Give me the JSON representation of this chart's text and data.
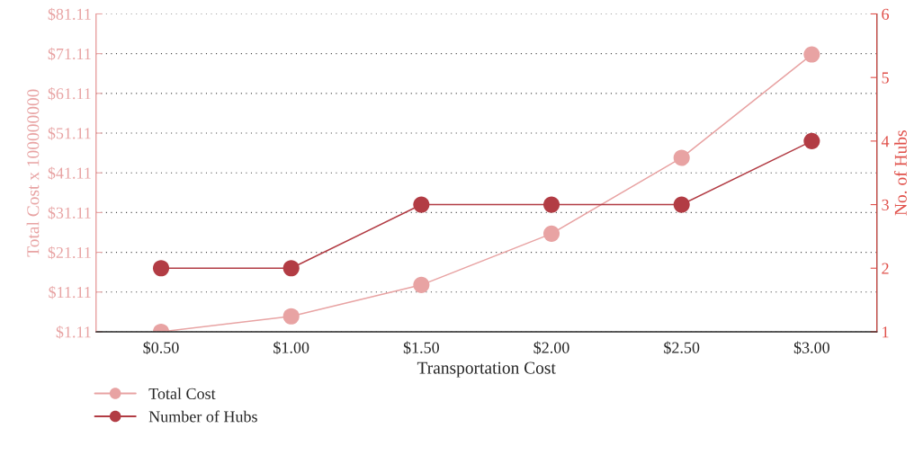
{
  "chart_data": {
    "type": "line",
    "xlabel": "Transportation Cost",
    "ylabel": "Total Cost x 100000000",
    "y2label": "No. of Hubs",
    "categories": [
      "$0.50",
      "$1.00",
      "$1.50",
      "$2.00",
      "$2.50",
      "$3.00"
    ],
    "series": [
      {
        "name": "Total Cost",
        "color": "#e8a3a3",
        "values": [
          1.11,
          5.0,
          12.9,
          25.8,
          44.9,
          70.9
        ]
      },
      {
        "name": "Number of Hubs",
        "color": "#b23c44",
        "axis": "y2",
        "values": [
          2,
          2,
          3,
          3,
          3,
          4
        ]
      }
    ],
    "ylim": [
      1.11,
      81.11
    ],
    "yticks": [
      {
        "value": 1.11,
        "label": "$1.11"
      },
      {
        "value": 11.11,
        "label": "$11.11"
      },
      {
        "value": 21.11,
        "label": "$21.11"
      },
      {
        "value": 31.11,
        "label": "$31.11"
      },
      {
        "value": 41.11,
        "label": "$41.11"
      },
      {
        "value": 51.11,
        "label": "$51.11"
      },
      {
        "value": 61.11,
        "label": "$61.11"
      },
      {
        "value": 71.11,
        "label": "$71.11"
      },
      {
        "value": 81.11,
        "label": "$81.11"
      }
    ],
    "y2lim": [
      1,
      6
    ],
    "y2ticks": [
      1,
      2,
      3,
      4,
      5,
      6
    ],
    "grid": "y",
    "legend": "bottom left",
    "marker": "circle",
    "line_style": "solid"
  }
}
